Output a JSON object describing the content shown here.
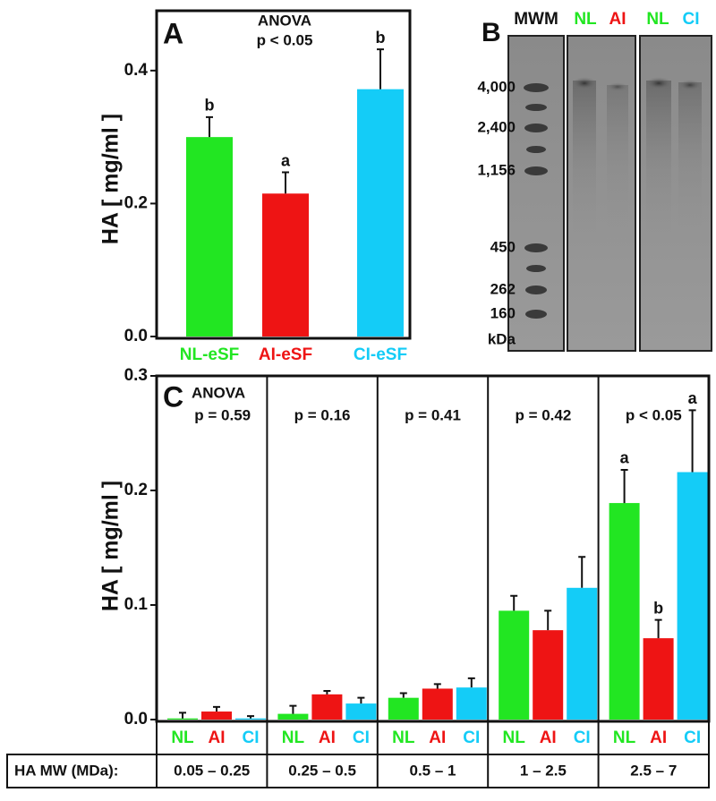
{
  "chart_data": [
    {
      "type": "bar",
      "panel": "A",
      "annotation": [
        "ANOVA",
        "p < 0.05"
      ],
      "y_label": "HA [ mg/ml ]",
      "categories": [
        "NL-eSF",
        "AI-eSF",
        "CI-eSF"
      ],
      "colors": [
        "#22e622",
        "#ee1414",
        "#14ccf7"
      ],
      "values": [
        0.3,
        0.215,
        0.372
      ],
      "errors": [
        0.03,
        0.032,
        0.06
      ],
      "letters": [
        "b",
        "a",
        "b"
      ],
      "ylim": [
        0,
        0.49
      ],
      "yticks": [
        {
          "value": 0,
          "label": "0.0"
        },
        0.2,
        0.4
      ]
    },
    {
      "type": "grouped_bar",
      "panel": "C",
      "anova_label": "ANOVA",
      "y_label": "HA [ mg/ml ]",
      "x_label": "HA MW (MDa):",
      "categories": [
        "0.05 – 0.25",
        "0.25 – 0.5",
        "0.5 – 1",
        "1 – 2.5",
        "2.5 – 7"
      ],
      "annotations": [
        "p = 0.59",
        "p = 0.16",
        "p = 0.41",
        "p = 0.42",
        "p < 0.05"
      ],
      "series": [
        {
          "name": "NL",
          "color": "#22e622",
          "values": [
            0.001,
            0.005,
            0.019,
            0.095,
            0.189
          ],
          "errors": [
            0.005,
            0.007,
            0.004,
            0.013,
            0.029
          ],
          "letters": [
            null,
            null,
            null,
            null,
            "a"
          ]
        },
        {
          "name": "AI",
          "color": "#ee1414",
          "values": [
            0.007,
            0.022,
            0.027,
            0.078,
            0.071
          ],
          "errors": [
            0.004,
            0.003,
            0.004,
            0.017,
            0.016
          ],
          "letters": [
            null,
            null,
            null,
            null,
            "b"
          ]
        },
        {
          "name": "CI",
          "color": "#14ccf7",
          "values": [
            0.001,
            0.014,
            0.028,
            0.115,
            0.216
          ],
          "errors": [
            0.002,
            0.005,
            0.008,
            0.027,
            0.054
          ],
          "letters": [
            null,
            null,
            null,
            null,
            "a"
          ]
        }
      ],
      "ylim": [
        0,
        0.3
      ],
      "yticks": [
        {
          "value": 0,
          "label": "0.0"
        },
        0.1,
        0.2,
        0.3
      ]
    }
  ],
  "gel": {
    "panel": "B",
    "lanes": [
      "MWM",
      "NL",
      "AI",
      "NL",
      "CI"
    ],
    "markers": [
      "4,000",
      "2,400",
      "1,156",
      "450",
      "262",
      "160"
    ],
    "unit": "kDa"
  }
}
